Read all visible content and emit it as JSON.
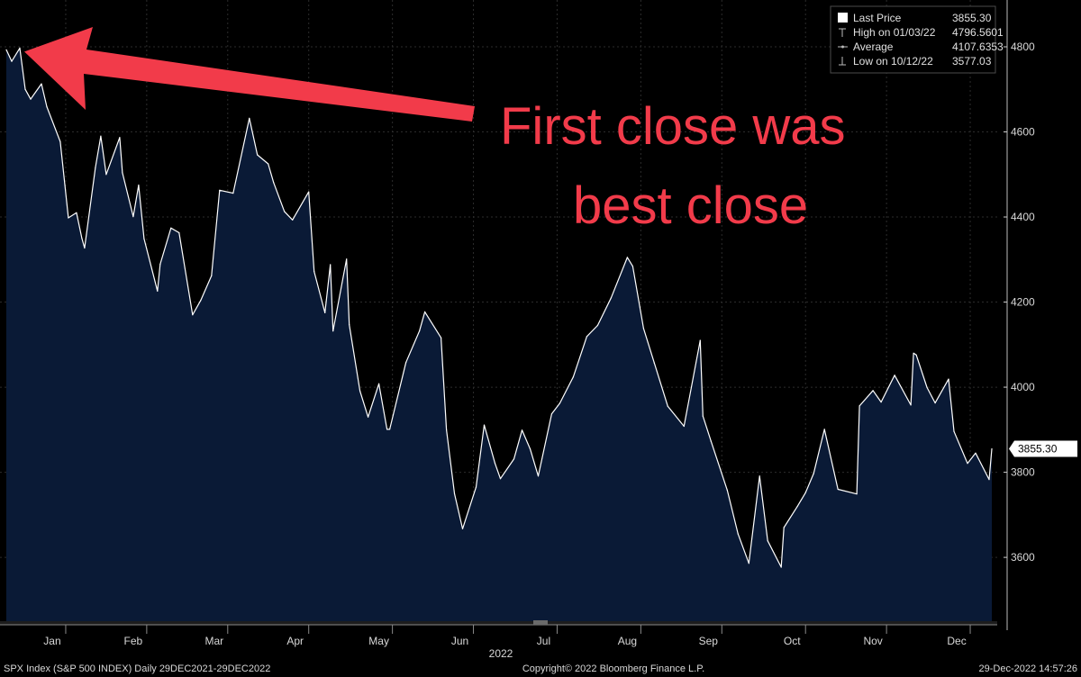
{
  "chart_data": {
    "type": "area",
    "series": [
      {
        "name": "SPX Index",
        "dates": [
          "2021-12-29",
          "2021-12-31",
          "2022-01-03",
          "2022-01-05",
          "2022-01-07",
          "2022-01-11",
          "2022-01-13",
          "2022-01-18",
          "2022-01-21",
          "2022-01-24",
          "2022-01-26",
          "2022-01-27",
          "2022-01-31",
          "2022-02-02",
          "2022-02-04",
          "2022-02-09",
          "2022-02-10",
          "2022-02-14",
          "2022-02-16",
          "2022-02-18",
          "2022-02-23",
          "2022-02-24",
          "2022-02-28",
          "2022-03-03",
          "2022-03-08",
          "2022-03-11",
          "2022-03-15",
          "2022-03-18",
          "2022-03-23",
          "2022-03-29",
          "2022-04-01",
          "2022-04-05",
          "2022-04-07",
          "2022-04-11",
          "2022-04-14",
          "2022-04-20",
          "2022-04-22",
          "2022-04-26",
          "2022-04-28",
          "2022-04-29",
          "2022-05-04",
          "2022-05-05",
          "2022-05-09",
          "2022-05-12",
          "2022-05-16",
          "2022-05-19",
          "2022-05-20",
          "2022-05-26",
          "2022-05-31",
          "2022-06-02",
          "2022-06-08",
          "2022-06-10",
          "2022-06-13",
          "2022-06-16",
          "2022-06-21",
          "2022-06-24",
          "2022-06-28",
          "2022-06-30",
          "2022-07-05",
          "2022-07-08",
          "2022-07-11",
          "2022-07-14",
          "2022-07-19",
          "2022-07-22",
          "2022-07-27",
          "2022-08-01",
          "2022-08-05",
          "2022-08-10",
          "2022-08-16",
          "2022-08-18",
          "2022-08-22",
          "2022-08-26",
          "2022-08-31",
          "2022-09-06",
          "2022-09-12",
          "2022-09-13",
          "2022-09-16",
          "2022-09-22",
          "2022-09-26",
          "2022-09-30",
          "2022-10-04",
          "2022-10-07",
          "2022-10-12",
          "2022-10-13",
          "2022-10-18",
          "2022-10-21",
          "2022-10-24",
          "2022-10-28",
          "2022-11-02",
          "2022-11-09",
          "2022-11-10",
          "2022-11-15",
          "2022-11-18",
          "2022-11-23",
          "2022-11-29",
          "2022-11-30",
          "2022-12-01",
          "2022-12-05",
          "2022-12-08",
          "2022-12-13",
          "2022-12-15",
          "2022-12-20",
          "2022-12-23",
          "2022-12-28",
          "2022-12-29"
        ],
        "values": [
          4793,
          4766,
          4797,
          4700,
          4677,
          4713,
          4659,
          4577,
          4398,
          4410,
          4350,
          4327,
          4516,
          4590,
          4500,
          4587,
          4504,
          4401,
          4475,
          4349,
          4226,
          4289,
          4374,
          4363,
          4170,
          4204,
          4262,
          4463,
          4456,
          4632,
          4546,
          4525,
          4481,
          4413,
          4393,
          4459,
          4272,
          4175,
          4288,
          4132,
          4301,
          4147,
          3991,
          3930,
          4008,
          3901,
          3901,
          4058,
          4132,
          4177,
          4116,
          3900,
          3750,
          3667,
          3765,
          3911,
          3821,
          3785,
          3831,
          3899,
          3855,
          3791,
          3937,
          3962,
          4024,
          4119,
          4145,
          4210,
          4305,
          4284,
          4138,
          4057,
          3955,
          3908,
          4110,
          3932,
          3873,
          3758,
          3655,
          3586,
          3791,
          3639,
          3577,
          3670,
          3720,
          3752,
          3797,
          3901,
          3760,
          3749,
          3956,
          3992,
          3965,
          4028,
          3958,
          4080,
          4076,
          3999,
          3963,
          4019,
          3896,
          3821,
          3845,
          3783,
          3855
        ]
      }
    ],
    "x_axis_labels": [
      "Jan",
      "Feb",
      "Mar",
      "Apr",
      "May",
      "Jun",
      "Jul",
      "Aug",
      "Sep",
      "Oct",
      "Nov",
      "Dec"
    ],
    "x_axis_label_dates": [
      "2022-01-15",
      "2022-02-14",
      "2022-03-16",
      "2022-04-15",
      "2022-05-16",
      "2022-06-15",
      "2022-07-16",
      "2022-08-16",
      "2022-09-15",
      "2022-10-16",
      "2022-11-15",
      "2022-12-16"
    ],
    "x_axis_year": "2022",
    "y_ticks": [
      3600,
      3800,
      4000,
      4200,
      4400,
      4600,
      4800
    ],
    "ylim": [
      3450,
      4910
    ],
    "xlim": [
      "2021-12-29",
      "2022-12-31"
    ],
    "grid": true,
    "legend_position": "top-right",
    "legend": [
      {
        "label": "Last Price",
        "value": "3855.30",
        "marker": "square"
      },
      {
        "label": "High on 01/03/22",
        "value": "4796.5601",
        "marker": "high"
      },
      {
        "label": "Average",
        "value": "4107.6353",
        "marker": "average"
      },
      {
        "label": "Low on 10/12/22",
        "value": "3577.03",
        "marker": "low"
      }
    ],
    "last_price_tag": {
      "text": "3855.30",
      "value": 3855.3
    },
    "annotation": {
      "lines": [
        "First close was",
        "best close"
      ],
      "target_date": "2022-01-03",
      "target_value": 4797
    },
    "colors": {
      "line": "#ffffff",
      "fill": "#0a1a36",
      "grid": "#2c2c2c",
      "annotation": "#f23b4a",
      "background": "#000000"
    }
  },
  "footer": {
    "left": "SPX Index (S&P 500 INDEX)  Daily 29DEC2021-29DEC2022",
    "center": "Copyright© 2022 Bloomberg Finance L.P.",
    "right": "29-Dec-2022 14:57:26"
  }
}
